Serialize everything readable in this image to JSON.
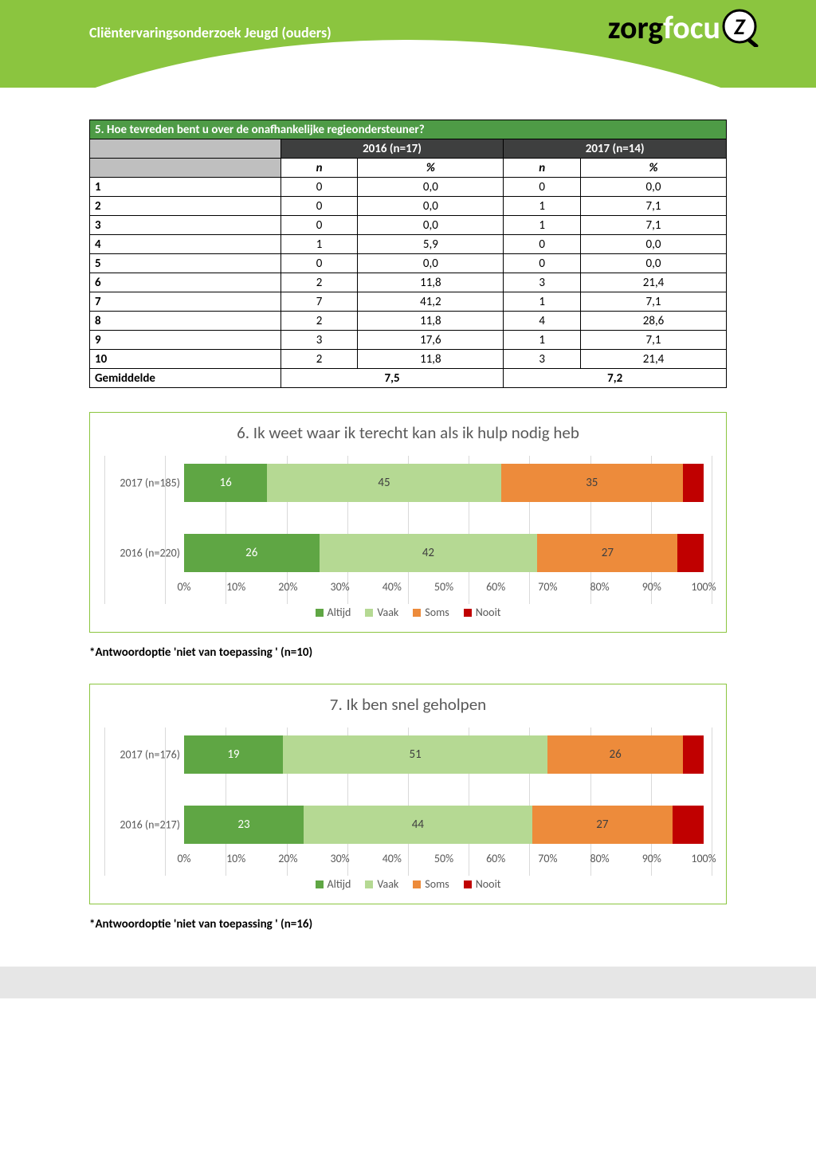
{
  "header": {
    "title": "Cliëntervaringsonderzoek Jeugd (ouders)",
    "logo_part1": "zorg",
    "logo_part2": "focu"
  },
  "table": {
    "title": "5. Hoe tevreden bent u over de onafhankelijke regieondersteuner?",
    "year1": "2016 (n=17)",
    "year2": "2017 (n=14)",
    "col_n": "n",
    "col_pct": "%",
    "rows": [
      {
        "cat": "1",
        "n1": "0",
        "p1": "0,0",
        "n2": "0",
        "p2": "0,0"
      },
      {
        "cat": "2",
        "n1": "0",
        "p1": "0,0",
        "n2": "1",
        "p2": "7,1"
      },
      {
        "cat": "3",
        "n1": "0",
        "p1": "0,0",
        "n2": "1",
        "p2": "7,1"
      },
      {
        "cat": "4",
        "n1": "1",
        "p1": "5,9",
        "n2": "0",
        "p2": "0,0"
      },
      {
        "cat": "5",
        "n1": "0",
        "p1": "0,0",
        "n2": "0",
        "p2": "0,0"
      },
      {
        "cat": "6",
        "n1": "2",
        "p1": "11,8",
        "n2": "3",
        "p2": "21,4"
      },
      {
        "cat": "7",
        "n1": "7",
        "p1": "41,2",
        "n2": "1",
        "p2": "7,1"
      },
      {
        "cat": "8",
        "n1": "2",
        "p1": "11,8",
        "n2": "4",
        "p2": "28,6"
      },
      {
        "cat": "9",
        "n1": "3",
        "p1": "17,6",
        "n2": "1",
        "p2": "7,1"
      },
      {
        "cat": "10",
        "n1": "2",
        "p1": "11,8",
        "n2": "3",
        "p2": "21,4"
      }
    ],
    "avg_label": "Gemiddelde",
    "avg1": "7,5",
    "avg2": "7,2"
  },
  "charts": [
    {
      "title": "6. Ik weet waar ik terecht kan als ik hulp nodig heb",
      "bars": [
        {
          "label": "2017 (n=185)",
          "segments": [
            {
              "v": 16,
              "text": "16"
            },
            {
              "v": 45,
              "text": "45"
            },
            {
              "v": 35,
              "text": "35"
            },
            {
              "v": 4,
              "text": ""
            }
          ]
        },
        {
          "label": "2016 (n=220)",
          "segments": [
            {
              "v": 26,
              "text": "26"
            },
            {
              "v": 42,
              "text": "42"
            },
            {
              "v": 27,
              "text": "27"
            },
            {
              "v": 5,
              "text": ""
            }
          ]
        }
      ],
      "footnote": "*Antwoordoptie 'niet van toepassing ' (n=10)"
    },
    {
      "title": "7. Ik ben snel geholpen",
      "bars": [
        {
          "label": "2017 (n=176)",
          "segments": [
            {
              "v": 19,
              "text": "19"
            },
            {
              "v": 51,
              "text": "51"
            },
            {
              "v": 26,
              "text": "26"
            },
            {
              "v": 4,
              "text": ""
            }
          ]
        },
        {
          "label": "2016 (n=217)",
          "segments": [
            {
              "v": 23,
              "text": "23"
            },
            {
              "v": 44,
              "text": "44"
            },
            {
              "v": 27,
              "text": "27"
            },
            {
              "v": 6,
              "text": ""
            }
          ]
        }
      ],
      "footnote": "*Antwoordoptie 'niet van toepassing ' (n=16)"
    }
  ],
  "chart_style": {
    "type": "stacked-bar-horizontal",
    "colors": [
      "#5fa644",
      "#b5d993",
      "#ed8b3b",
      "#c00000"
    ],
    "seg_text_color": [
      "#ffffff",
      "#404040",
      "#404040",
      "#ffffff"
    ],
    "grid_color": "#d9d9d9",
    "xticks": [
      "0%",
      "10%",
      "20%",
      "30%",
      "40%",
      "50%",
      "60%",
      "70%",
      "80%",
      "90%",
      "100%"
    ],
    "legend": [
      "Altijd",
      "Vaak",
      "Soms",
      "Nooit"
    ]
  }
}
